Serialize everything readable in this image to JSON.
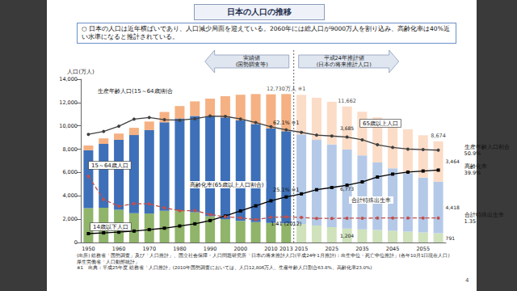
{
  "title": "日本の人口の推移",
  "note": "○ 日本の人口は近年横ばいであり、人口減少局面を迎えている。2060年には総人口が9000万人を割り込み、高齢化率は40%近い水準になると推計されている。",
  "period_labels": {
    "actual": [
      "実績値",
      "(国勢調査等)"
    ],
    "projection": [
      "平成24年推計値",
      "(日本の将来推計人口)"
    ]
  },
  "source_lines": [
    "(出所) 総務省「国勢調査」及び「人口推計」、国立社会保障・人口問題研究所「日本の将来推計人口(平成24年1月推計)：出生中位・死亡中位推計」(各年10月1日現在人口)",
    "厚生労働省「人口動態統計」",
    "※1　出典：平成25年度 総務省「人口推計」(2010年国勢調査においては、人口12,806万人、生産年齢人口割合63.8%、高齢化率23.0%)"
  ],
  "page_number": "4",
  "chart_data": {
    "type": "bar",
    "y_label": "人口(万人)",
    "stacked": true,
    "grid": false,
    "categories": [
      "1950",
      null,
      "1960",
      null,
      "1970",
      null,
      "1980",
      null,
      "1990",
      null,
      "2000",
      null,
      "2010",
      "2013",
      "2015",
      null,
      "2025",
      null,
      "2035",
      null,
      "2045",
      null,
      "2055",
      null
    ],
    "ylim": [
      0,
      14000
    ],
    "yticks": [
      0,
      {
        "value": 2000,
        "label": "2,000"
      },
      {
        "value": 4000,
        "label": "4,000"
      },
      {
        "value": 6000,
        "label": "6,000"
      },
      {
        "value": 8000,
        "label": "8,000"
      },
      {
        "value": 10000,
        "label": "10,000"
      },
      {
        "value": 12000,
        "label": "12,000"
      },
      {
        "value": 14000,
        "label": "14,000"
      }
    ],
    "y2lim": [
      0,
      90
    ],
    "y3lim": [
      0,
      9
    ],
    "totals": [
      null,
      null,
      null,
      null,
      null,
      null,
      null,
      null,
      null,
      null,
      null,
      null,
      null,
      12730,
      null,
      null,
      null,
      11662,
      null,
      null,
      null,
      null,
      null,
      8674
    ],
    "total_labels": [
      null,
      null,
      null,
      null,
      null,
      null,
      null,
      null,
      null,
      null,
      null,
      null,
      null,
      "12,730万人 ※1",
      null,
      null,
      null,
      "11,662",
      null,
      null,
      null,
      null,
      null,
      "8,674"
    ],
    "series": [
      {
        "name": "14歳以下人口",
        "type": "bar",
        "values": [
          2943,
          2980,
          2807,
          2517,
          2482,
          2722,
          2751,
          2603,
          2249,
          2001,
          1847,
          1752,
          1680,
          1639,
          1583,
          1457,
          1324,
          1204,
          1129,
          1073,
          1012,
          939,
          861,
          791
        ],
        "value_labels": [
          null,
          null,
          null,
          null,
          null,
          null,
          null,
          null,
          null,
          null,
          null,
          null,
          null,
          null,
          null,
          null,
          null,
          "1,204",
          null,
          null,
          null,
          null,
          null,
          "791"
        ],
        "colors": [
          "#8fb46a",
          "#8fb46a",
          "#8fb46a",
          "#8fb46a",
          "#8fb46a",
          "#8fb46a",
          "#8fb46a",
          "#8fb46a",
          "#8fb46a",
          "#8fb46a",
          "#8fb46a",
          "#8fb46a",
          "#8fb46a",
          "#8fb46a",
          "#cfe2bb",
          "#cfe2bb",
          "#cfe2bb",
          "#cfe2bb",
          "#cfe2bb",
          "#cfe2bb",
          "#cfe2bb",
          "#cfe2bb",
          "#cfe2bb",
          "#cfe2bb"
        ]
      },
      {
        "name": "15～64歳人口",
        "type": "bar",
        "values": [
          4966,
          5473,
          6000,
          6693,
          7157,
          7581,
          7883,
          8251,
          8590,
          8716,
          8622,
          8409,
          8103,
          7901,
          7682,
          7341,
          7085,
          6773,
          6343,
          5787,
          5353,
          5001,
          4706,
          4418
        ],
        "value_labels": [
          null,
          null,
          null,
          null,
          null,
          null,
          null,
          null,
          null,
          null,
          null,
          null,
          null,
          null,
          null,
          null,
          null,
          "6,773",
          null,
          null,
          null,
          null,
          null,
          "4,418"
        ],
        "colors": [
          "#3d70b8",
          "#3d70b8",
          "#3d70b8",
          "#3d70b8",
          "#3d70b8",
          "#3d70b8",
          "#3d70b8",
          "#3d70b8",
          "#3d70b8",
          "#3d70b8",
          "#3d70b8",
          "#3d70b8",
          "#3d70b8",
          "#3d70b8",
          "#b4c9e8",
          "#b4c9e8",
          "#b4c9e8",
          "#b4c9e8",
          "#b4c9e8",
          "#b4c9e8",
          "#b4c9e8",
          "#b4c9e8",
          "#b4c9e8",
          "#b4c9e8"
        ]
      },
      {
        "name": "65歳以上人口",
        "type": "bar",
        "values": [
          411,
          475,
          535,
          624,
          733,
          887,
          1065,
          1247,
          1489,
          1826,
          2201,
          2567,
          2925,
          3190,
          3395,
          3612,
          3657,
          3685,
          3741,
          3868,
          3856,
          3768,
          3626,
          3464
        ],
        "value_labels": [
          null,
          null,
          null,
          null,
          null,
          null,
          null,
          null,
          null,
          null,
          null,
          null,
          null,
          null,
          null,
          null,
          null,
          "3,685",
          null,
          null,
          null,
          null,
          null,
          "3,464"
        ],
        "colors": [
          "#f5b183",
          "#f5b183",
          "#f5b183",
          "#f5b183",
          "#f5b183",
          "#f5b183",
          "#f5b183",
          "#f5b183",
          "#f5b183",
          "#f5b183",
          "#f5b183",
          "#f5b183",
          "#f5b183",
          "#f5b183",
          "#fbdcc7",
          "#fbdcc7",
          "#fbdcc7",
          "#fbdcc7",
          "#fbdcc7",
          "#fbdcc7",
          "#fbdcc7",
          "#fbdcc7",
          "#fbdcc7",
          "#fbdcc7"
        ]
      },
      {
        "name": "生産年齢人口(15～64歳)割合",
        "end_label": "生産年齢人口割合",
        "type": "line",
        "axis": "y2",
        "color": "#404040",
        "marker": "circle",
        "line_style": "solid",
        "values": [
          59.6,
          61.2,
          64.1,
          68.0,
          68.9,
          67.7,
          67.4,
          68.2,
          69.7,
          69.5,
          68.1,
          66.1,
          63.8,
          62.1,
          60.7,
          59.2,
          58.7,
          58.1,
          56.6,
          53.9,
          52.4,
          51.5,
          51.2,
          50.9
        ],
        "value_labels": [
          null,
          null,
          null,
          null,
          null,
          null,
          null,
          null,
          null,
          null,
          null,
          null,
          null,
          "62.1% ※1",
          null,
          null,
          null,
          null,
          null,
          null,
          null,
          null,
          null,
          "50.9%"
        ]
      },
      {
        "name": "高齢化率(65歳以上人口割合)",
        "end_label": "高齢化率",
        "type": "line",
        "axis": "y2",
        "color": "#000000",
        "marker": "square",
        "line_style": "solid",
        "values": [
          4.9,
          5.3,
          5.7,
          6.3,
          7.1,
          7.9,
          9.1,
          10.3,
          12.1,
          14.6,
          17.4,
          20.2,
          23.0,
          25.1,
          26.8,
          29.1,
          30.3,
          31.6,
          33.4,
          36.1,
          37.7,
          38.8,
          39.4,
          39.9
        ],
        "value_labels": [
          null,
          null,
          null,
          null,
          null,
          null,
          null,
          null,
          null,
          null,
          null,
          null,
          null,
          "25.1% ※1",
          null,
          null,
          null,
          null,
          null,
          null,
          null,
          null,
          null,
          "39.9%"
        ]
      },
      {
        "name": "合計特殊出生率",
        "end_label": "合計特殊出生率",
        "type": "line",
        "axis": "y3",
        "color": "#c0504d",
        "marker": "circle",
        "line_style": "dashed",
        "values": [
          3.65,
          2.37,
          2.0,
          2.14,
          2.13,
          1.91,
          1.75,
          1.76,
          1.54,
          1.42,
          1.36,
          1.26,
          1.39,
          1.41,
          1.38,
          1.33,
          1.33,
          1.34,
          1.34,
          1.35,
          1.35,
          1.35,
          1.35,
          1.35
        ],
        "value_labels": [
          null,
          null,
          null,
          null,
          null,
          null,
          null,
          null,
          null,
          null,
          null,
          null,
          null,
          "1.41 (2012)",
          null,
          null,
          null,
          null,
          null,
          null,
          null,
          null,
          null,
          "1.35"
        ]
      }
    ]
  }
}
